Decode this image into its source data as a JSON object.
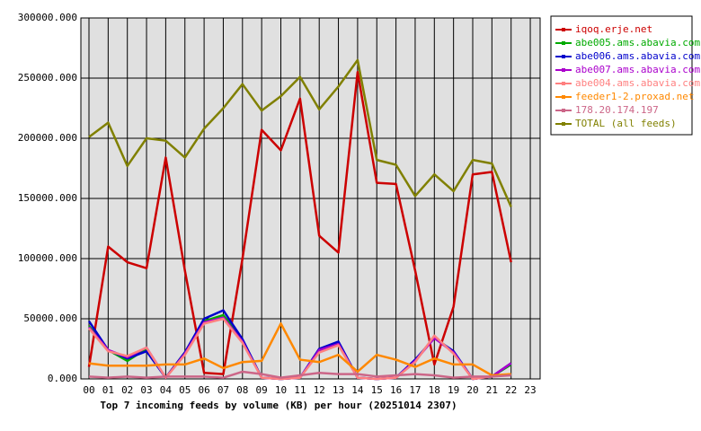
{
  "chart_data": {
    "type": "line",
    "xlabel": "Top 7 incoming feeds by volume (KB) per hour (20251014 2307)",
    "categories": [
      "00",
      "01",
      "02",
      "03",
      "04",
      "05",
      "06",
      "07",
      "08",
      "09",
      "10",
      "11",
      "12",
      "13",
      "14",
      "15",
      "16",
      "17",
      "18",
      "19",
      "20",
      "21",
      "22",
      "23"
    ],
    "ylim": [
      0,
      300000
    ],
    "yticks": [
      {
        "value": 0,
        "label": "0.000"
      },
      {
        "value": 50000,
        "label": "50000.000"
      },
      {
        "value": 100000,
        "label": "100000.000"
      },
      {
        "value": 150000,
        "label": "150000.000"
      },
      {
        "value": 200000,
        "label": "200000.000"
      },
      {
        "value": 250000,
        "label": "250000.000"
      },
      {
        "value": 300000,
        "label": "300000.000"
      }
    ],
    "grid": true,
    "legend": "right",
    "series": [
      {
        "name": "iqoq.erje.net",
        "color": "#cc0000",
        "values": [
          10000,
          110000,
          97000,
          92000,
          184000,
          90000,
          5000,
          4000,
          100000,
          207000,
          190000,
          233000,
          119000,
          105000,
          255000,
          163000,
          162000,
          90000,
          12000,
          60000,
          170000,
          172000,
          97000,
          null
        ]
      },
      {
        "name": "abe005.ams.abavia.com",
        "color": "#00aa00",
        "values": [
          44000,
          24000,
          15000,
          25000,
          1000,
          22000,
          48000,
          53000,
          32000,
          1000,
          0,
          1000,
          23000,
          29000,
          1000,
          0,
          1000,
          15000,
          35000,
          22000,
          0,
          2000,
          12000,
          null
        ]
      },
      {
        "name": "abe006.ams.abavia.com",
        "color": "#0000cc",
        "values": [
          48000,
          24000,
          17000,
          23000,
          1000,
          22000,
          50000,
          57000,
          33000,
          1000,
          0,
          1000,
          25000,
          31000,
          1000,
          0,
          1000,
          16000,
          34000,
          23000,
          0,
          2000,
          13000,
          null
        ]
      },
      {
        "name": "abe007.ams.abavia.com",
        "color": "#aa00cc",
        "values": [
          43000,
          24000,
          18000,
          26000,
          1000,
          21000,
          47000,
          51000,
          31000,
          1000,
          0,
          1000,
          24000,
          29000,
          1000,
          0,
          1000,
          15000,
          34000,
          22000,
          0,
          2000,
          13000,
          null
        ]
      },
      {
        "name": "abe004.ams.abavia.com",
        "color": "#ff8080",
        "values": [
          42000,
          23000,
          19000,
          26000,
          1000,
          20000,
          46000,
          50000,
          30000,
          1000,
          0,
          1000,
          22000,
          28000,
          1000,
          0,
          1000,
          14000,
          36000,
          21000,
          0,
          2000,
          4000,
          null
        ]
      },
      {
        "name": "feeder1-2.proxad.net",
        "color": "#ff8800",
        "values": [
          13000,
          11000,
          11000,
          11000,
          12000,
          12000,
          17000,
          9000,
          14000,
          15000,
          46000,
          16000,
          14000,
          20000,
          6000,
          20000,
          16000,
          10000,
          17000,
          12000,
          12000,
          3000,
          4000,
          null
        ]
      },
      {
        "name": "178.20.174.197",
        "color": "#cc6688",
        "values": [
          2000,
          1000,
          2000,
          1000,
          2000,
          2000,
          2000,
          1000,
          6000,
          4000,
          1000,
          3000,
          5000,
          4000,
          4000,
          2000,
          3000,
          4000,
          3000,
          1000,
          2000,
          2000,
          3000,
          null
        ]
      },
      {
        "name": "TOTAL (all feeds)",
        "color": "#808000",
        "values": [
          201000,
          213000,
          177000,
          200000,
          198000,
          184000,
          208000,
          225000,
          245000,
          223000,
          235000,
          251000,
          224000,
          243000,
          265000,
          182000,
          178000,
          152000,
          170000,
          156000,
          182000,
          179000,
          143000,
          null
        ]
      }
    ]
  }
}
